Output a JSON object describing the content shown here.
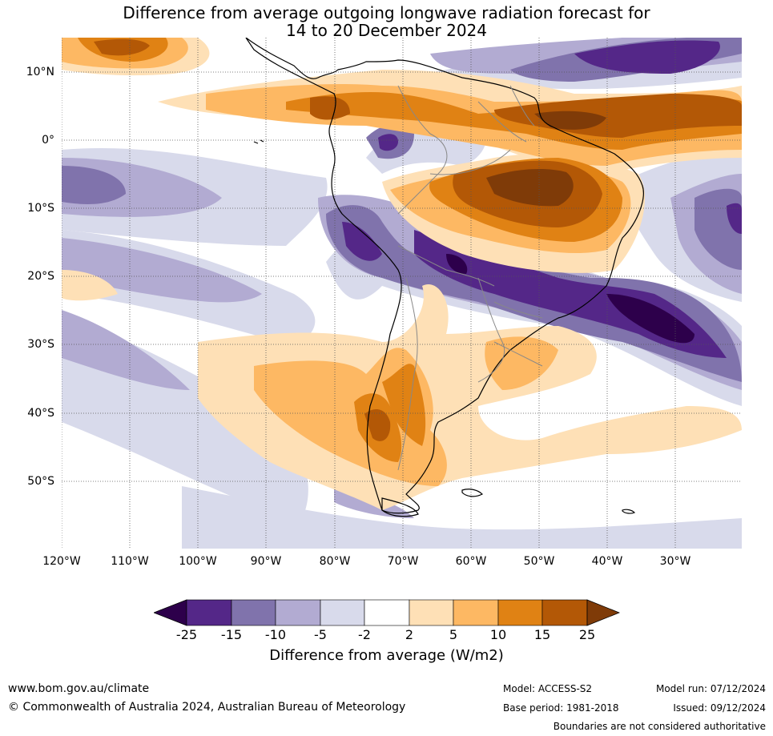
{
  "title": {
    "line1": "Difference from average outgoing longwave radiation forecast for",
    "line2": "14 to 20 December 2024"
  },
  "map": {
    "lat_labels": [
      "10°N",
      "0°",
      "10°S",
      "20°S",
      "30°S",
      "40°S",
      "50°S"
    ],
    "lon_labels": [
      "120°W",
      "110°W",
      "100°W",
      "90°W",
      "80°W",
      "70°W",
      "60°W",
      "50°W",
      "40°W",
      "30°W"
    ]
  },
  "colorbar": {
    "ticks": [
      "-25",
      "-15",
      "-10",
      "-5",
      "-2",
      "2",
      "5",
      "10",
      "15",
      "25"
    ],
    "label": "Difference from average (W/m2)",
    "colors": [
      "#2d004b",
      "#542788",
      "#8073ac",
      "#b2abd2",
      "#d8daeb",
      "#ffffff",
      "#fee0b6",
      "#fdb863",
      "#e08214",
      "#b35806",
      "#7f3b08"
    ]
  },
  "footer": {
    "website": "www.bom.gov.au/climate",
    "copyright": "© Commonwealth of Australia 2024, Australian Bureau of Meteorology",
    "model": "Model: ACCESS-S2",
    "base_period": "Base period: 1981-2018",
    "model_run": "Model run: 07/12/2024",
    "issued": "Issued: 09/12/2024",
    "disclaimer": "Boundaries are not considered authoritative"
  }
}
